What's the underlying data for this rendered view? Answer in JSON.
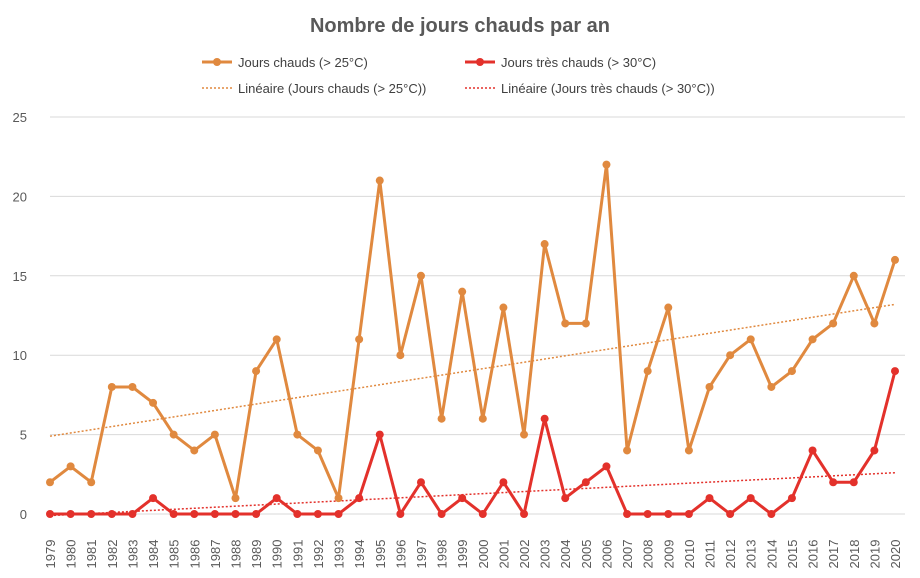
{
  "chart_data": {
    "type": "line",
    "title": "Nombre de jours chauds par an",
    "xlabel": "",
    "ylabel": "",
    "ylim": [
      0,
      25
    ],
    "yticks": [
      0,
      5,
      10,
      15,
      20,
      25
    ],
    "grid": true,
    "legend_position": "top",
    "categories": [
      "1979",
      "1980",
      "1981",
      "1982",
      "1983",
      "1984",
      "1985",
      "1986",
      "1987",
      "1988",
      "1989",
      "1990",
      "1991",
      "1992",
      "1993",
      "1994",
      "1995",
      "1996",
      "1997",
      "1998",
      "1999",
      "2000",
      "2001",
      "2002",
      "2003",
      "2004",
      "2005",
      "2006",
      "2007",
      "2008",
      "2009",
      "2010",
      "2011",
      "2012",
      "2013",
      "2014",
      "2015",
      "2016",
      "2017",
      "2018",
      "2019",
      "2020"
    ],
    "series": [
      {
        "name": "Jours chauds (> 25°C)",
        "color": "#e0893f",
        "values": [
          2,
          3,
          2,
          8,
          8,
          7,
          5,
          4,
          5,
          1,
          9,
          11,
          5,
          4,
          1,
          11,
          21,
          10,
          15,
          6,
          14,
          6,
          13,
          5,
          17,
          12,
          12,
          22,
          4,
          9,
          13,
          4,
          8,
          10,
          11,
          8,
          9,
          11,
          12,
          15,
          12,
          16
        ]
      },
      {
        "name": "Jours très chauds (> 30°C)",
        "color": "#e3312b",
        "values": [
          0,
          0,
          0,
          0,
          0,
          1,
          0,
          0,
          0,
          0,
          0,
          1,
          0,
          0,
          0,
          1,
          5,
          0,
          2,
          0,
          1,
          0,
          2,
          0,
          6,
          1,
          2,
          3,
          0,
          0,
          0,
          0,
          1,
          0,
          1,
          0,
          1,
          4,
          2,
          2,
          4,
          9
        ]
      }
    ],
    "trendlines": [
      {
        "name": "Linéaire (Jours chauds (> 25°C))",
        "color": "#e0893f",
        "start": 4.9,
        "end": 13.2
      },
      {
        "name": "Linéaire (Jours très chauds (> 30°C))",
        "color": "#e3312b",
        "start": -0.1,
        "end": 2.6
      }
    ]
  }
}
